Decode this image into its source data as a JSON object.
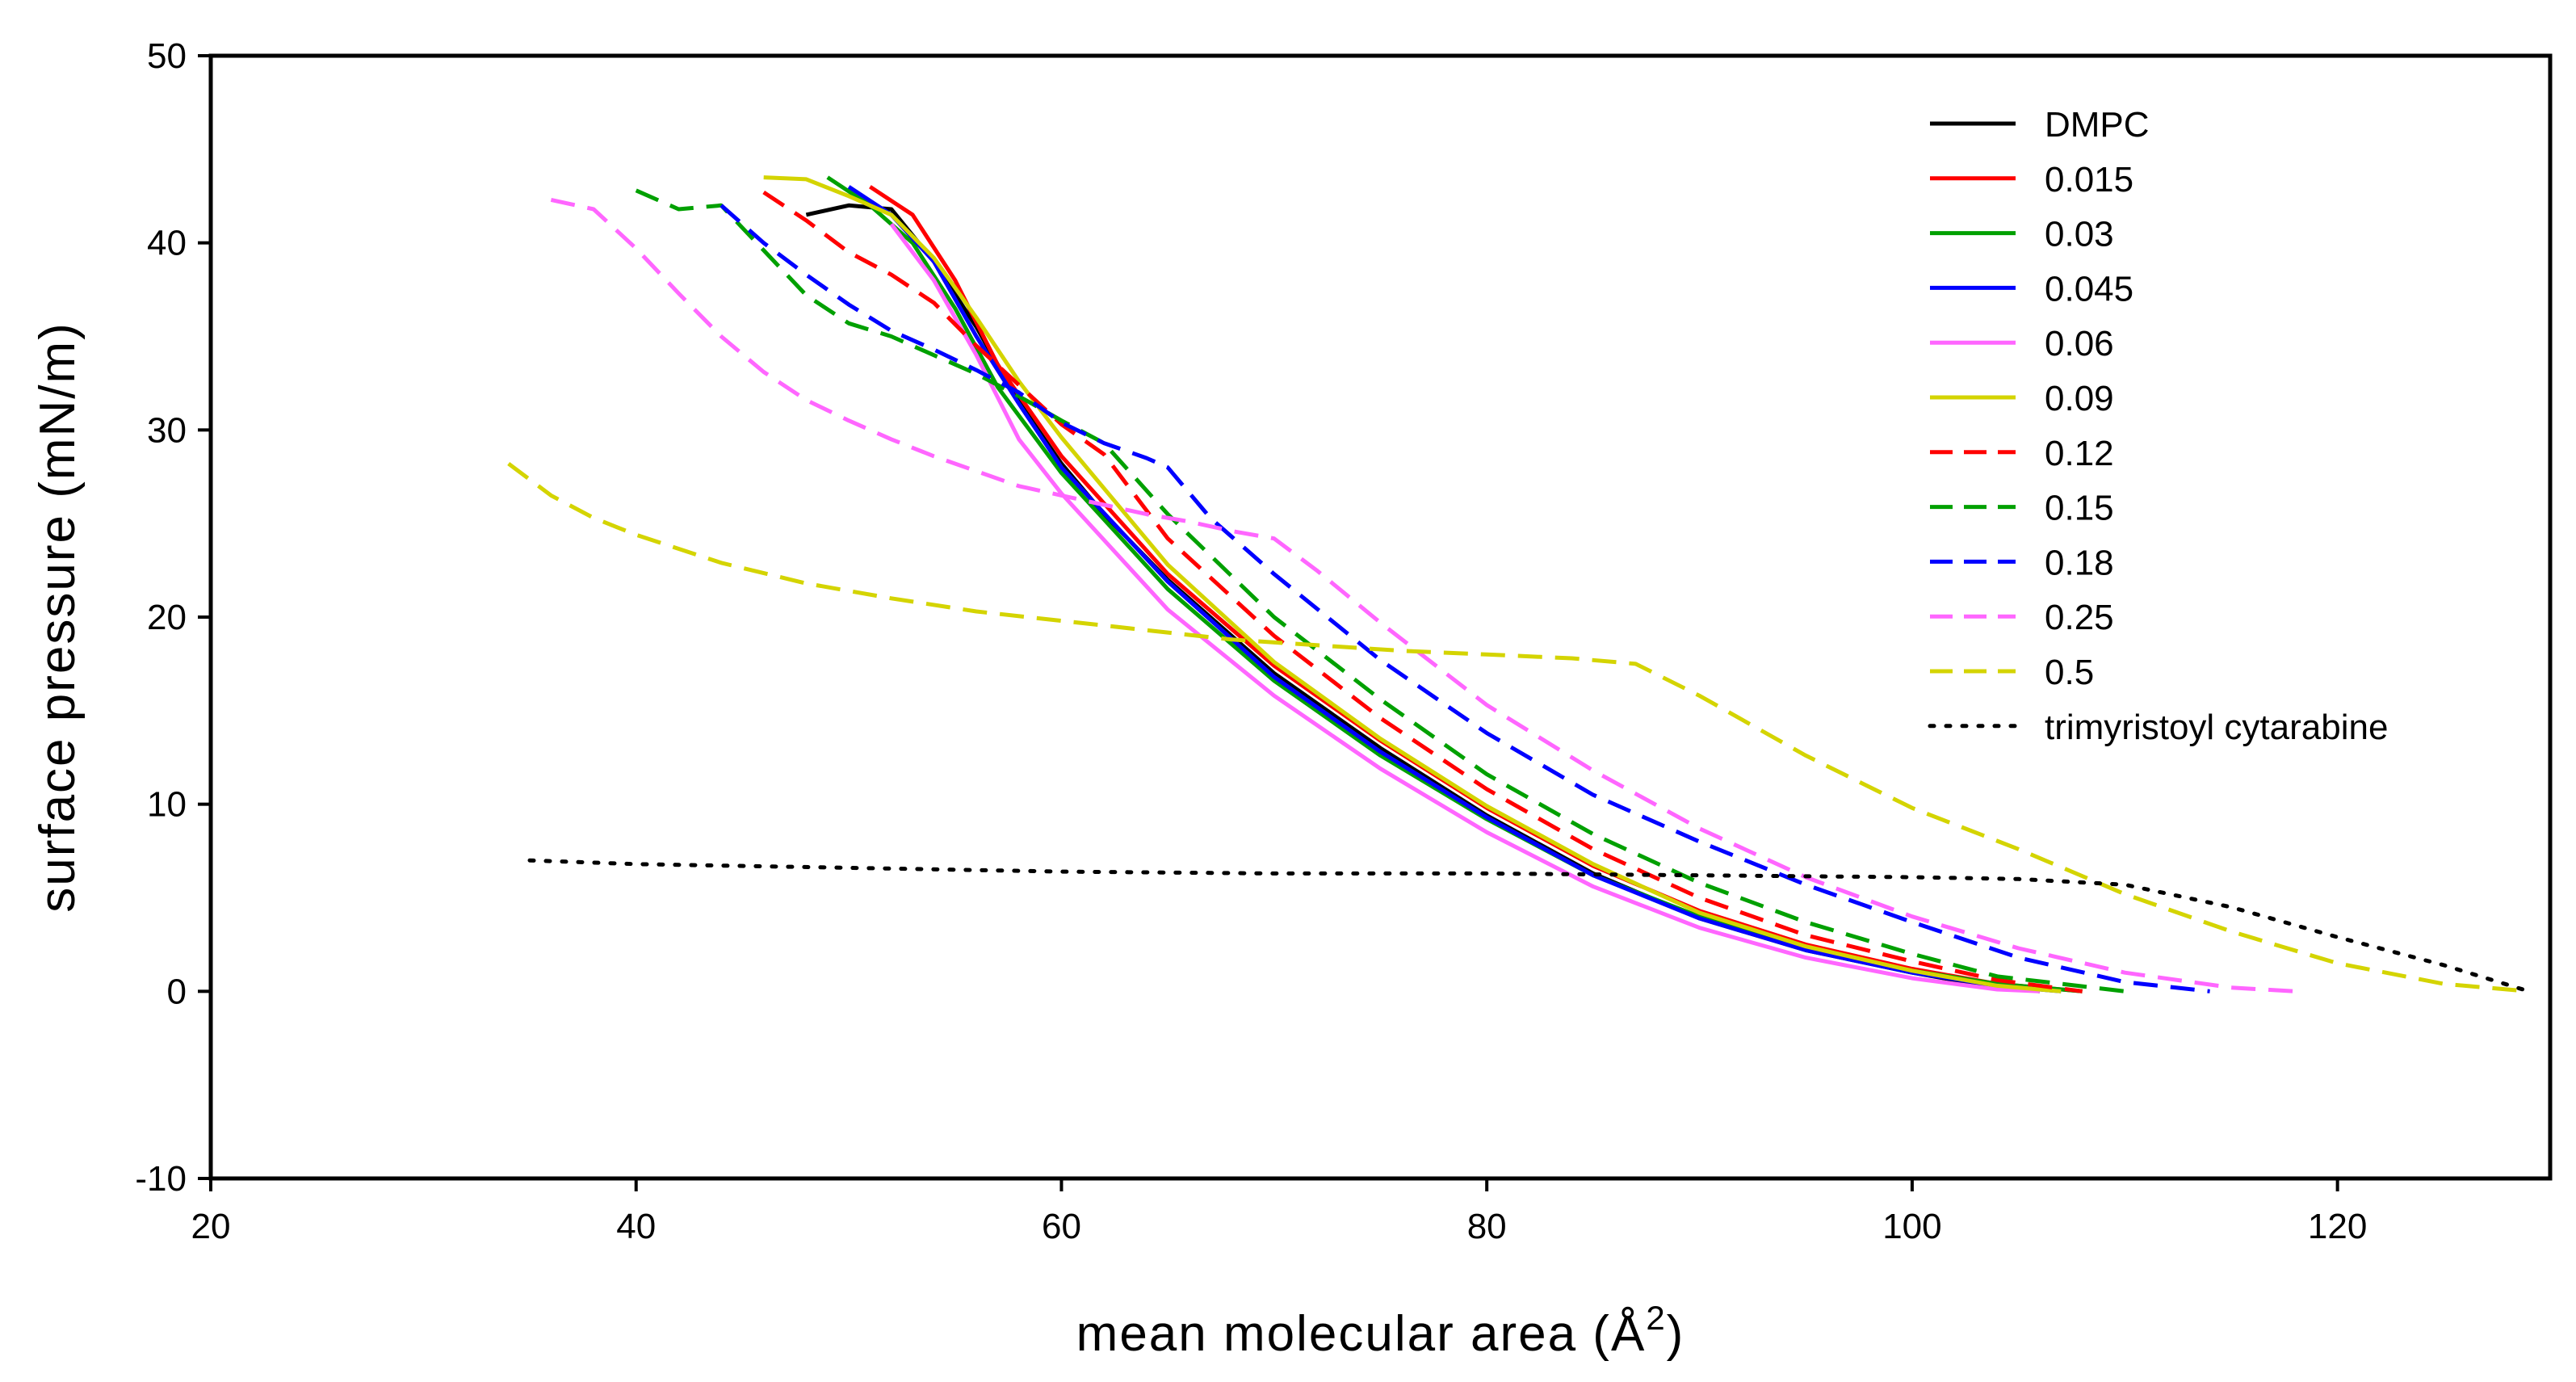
{
  "chart_data": {
    "type": "line",
    "title": "",
    "xlabel": {
      "text": "mean molecular area (",
      "unit": "Å",
      "sup": "2",
      "tail": ")"
    },
    "ylabel": "surface pressure (mN/m)",
    "xlim": [
      20,
      130
    ],
    "ylim": [
      -10,
      50
    ],
    "xticks": [
      20,
      40,
      60,
      80,
      100,
      120
    ],
    "yticks": [
      -10,
      0,
      10,
      20,
      30,
      40,
      50
    ],
    "grid": false,
    "legend_position": "top-right",
    "series": [
      {
        "name": "DMPC",
        "color": "#000000",
        "style": "solid",
        "points": [
          [
            48,
            41.5
          ],
          [
            50,
            42
          ],
          [
            52,
            41.8
          ],
          [
            54,
            39
          ],
          [
            56,
            35.5
          ],
          [
            58,
            31.5
          ],
          [
            60,
            28.2
          ],
          [
            62,
            25.5
          ],
          [
            65,
            22
          ],
          [
            70,
            17
          ],
          [
            75,
            13
          ],
          [
            80,
            9.4
          ],
          [
            85,
            6.3
          ],
          [
            90,
            3.9
          ],
          [
            95,
            2.2
          ],
          [
            100,
            1
          ],
          [
            103,
            0.4
          ],
          [
            106,
            0
          ]
        ]
      },
      {
        "name": "0.015",
        "color": "#ff0000",
        "style": "solid",
        "points": [
          [
            51,
            43
          ],
          [
            53,
            41.5
          ],
          [
            55,
            38
          ],
          [
            57,
            33.5
          ],
          [
            60,
            28.6
          ],
          [
            65,
            22.3
          ],
          [
            70,
            17.4
          ],
          [
            75,
            13.4
          ],
          [
            80,
            9.8
          ],
          [
            85,
            6.7
          ],
          [
            90,
            4.3
          ],
          [
            95,
            2.5
          ],
          [
            100,
            1.2
          ],
          [
            104,
            0.4
          ],
          [
            108,
            0
          ]
        ]
      },
      {
        "name": "0.03",
        "color": "#00a000",
        "style": "solid",
        "points": [
          [
            49,
            43.5
          ],
          [
            51,
            42
          ],
          [
            53,
            40
          ],
          [
            55,
            36.5
          ],
          [
            57,
            32.3
          ],
          [
            60,
            27.7
          ],
          [
            65,
            21.5
          ],
          [
            70,
            16.6
          ],
          [
            75,
            12.6
          ],
          [
            80,
            9.2
          ],
          [
            85,
            6.2
          ],
          [
            90,
            4
          ],
          [
            95,
            2.3
          ],
          [
            100,
            1.1
          ],
          [
            104,
            0.4
          ],
          [
            108,
            0
          ]
        ]
      },
      {
        "name": "0.045",
        "color": "#0000ff",
        "style": "solid",
        "points": [
          [
            50,
            43
          ],
          [
            52,
            41.5
          ],
          [
            54,
            39
          ],
          [
            56,
            35
          ],
          [
            58,
            31.4
          ],
          [
            60,
            28
          ],
          [
            65,
            21.9
          ],
          [
            70,
            16.8
          ],
          [
            75,
            12.8
          ],
          [
            80,
            9.3
          ],
          [
            85,
            6.2
          ],
          [
            90,
            3.9
          ],
          [
            95,
            2.2
          ],
          [
            100,
            1
          ],
          [
            104,
            0.3
          ],
          [
            107,
            0
          ]
        ]
      },
      {
        "name": "0.06",
        "color": "#ff66ff",
        "style": "solid",
        "points": [
          [
            52,
            41
          ],
          [
            54,
            38
          ],
          [
            56,
            34
          ],
          [
            58,
            29.5
          ],
          [
            60,
            26.6
          ],
          [
            65,
            20.4
          ],
          [
            70,
            15.8
          ],
          [
            75,
            11.9
          ],
          [
            80,
            8.5
          ],
          [
            85,
            5.6
          ],
          [
            90,
            3.4
          ],
          [
            95,
            1.8
          ],
          [
            100,
            0.7
          ],
          [
            104,
            0.1
          ],
          [
            106,
            0
          ]
        ]
      },
      {
        "name": "0.09",
        "color": "#d4d400",
        "style": "solid",
        "points": [
          [
            46,
            43.5
          ],
          [
            48,
            43.4
          ],
          [
            50,
            42.5
          ],
          [
            52,
            41.5
          ],
          [
            54,
            39.2
          ],
          [
            56,
            36
          ],
          [
            58,
            32.6
          ],
          [
            60,
            29.6
          ],
          [
            65,
            22.8
          ],
          [
            70,
            17.6
          ],
          [
            75,
            13.5
          ],
          [
            80,
            9.9
          ],
          [
            85,
            6.8
          ],
          [
            90,
            4.2
          ],
          [
            95,
            2.4
          ],
          [
            100,
            1.1
          ],
          [
            104,
            0.3
          ],
          [
            107,
            0
          ]
        ]
      },
      {
        "name": "0.12",
        "color": "#ff0000",
        "style": "dashed",
        "points": [
          [
            46,
            42.7
          ],
          [
            48,
            41.2
          ],
          [
            50,
            39.5
          ],
          [
            52,
            38.3
          ],
          [
            54,
            36.8
          ],
          [
            56,
            34.5
          ],
          [
            58,
            32.4
          ],
          [
            60,
            30.3
          ],
          [
            62,
            28.7
          ],
          [
            65,
            24.2
          ],
          [
            70,
            19
          ],
          [
            75,
            14.6
          ],
          [
            80,
            10.8
          ],
          [
            85,
            7.6
          ],
          [
            90,
            5
          ],
          [
            95,
            3
          ],
          [
            100,
            1.6
          ],
          [
            104,
            0.6
          ],
          [
            108,
            0
          ]
        ]
      },
      {
        "name": "0.15",
        "color": "#00a000",
        "style": "dashed",
        "points": [
          [
            40,
            42.8
          ],
          [
            42,
            41.8
          ],
          [
            44,
            42
          ],
          [
            46,
            39.6
          ],
          [
            48,
            37.2
          ],
          [
            50,
            35.7
          ],
          [
            52,
            35
          ],
          [
            54,
            34
          ],
          [
            56,
            33
          ],
          [
            58,
            31.8
          ],
          [
            60,
            30.5
          ],
          [
            62,
            29.3
          ],
          [
            65,
            25.5
          ],
          [
            70,
            20
          ],
          [
            75,
            15.6
          ],
          [
            80,
            11.6
          ],
          [
            85,
            8.4
          ],
          [
            90,
            5.8
          ],
          [
            95,
            3.7
          ],
          [
            100,
            2
          ],
          [
            104,
            0.8
          ],
          [
            110,
            0
          ]
        ]
      },
      {
        "name": "0.18",
        "color": "#0000ff",
        "style": "dashed",
        "points": [
          [
            44,
            42
          ],
          [
            46,
            40
          ],
          [
            48,
            38.3
          ],
          [
            50,
            36.7
          ],
          [
            52,
            35.3
          ],
          [
            54,
            34.3
          ],
          [
            56,
            33.2
          ],
          [
            58,
            32
          ],
          [
            60,
            30.4
          ],
          [
            62,
            29.3
          ],
          [
            64,
            28.5
          ],
          [
            65,
            28
          ],
          [
            67,
            25.3
          ],
          [
            70,
            22.3
          ],
          [
            75,
            17.7
          ],
          [
            80,
            13.8
          ],
          [
            85,
            10.5
          ],
          [
            90,
            8
          ],
          [
            95,
            5.7
          ],
          [
            100,
            3.7
          ],
          [
            105,
            1.8
          ],
          [
            110,
            0.5
          ],
          [
            114,
            0
          ]
        ]
      },
      {
        "name": "0.25",
        "color": "#ff66ff",
        "style": "dashed",
        "points": [
          [
            36,
            42.3
          ],
          [
            38,
            41.8
          ],
          [
            40,
            39.7
          ],
          [
            42,
            37.3
          ],
          [
            44,
            35
          ],
          [
            46,
            33.1
          ],
          [
            48,
            31.6
          ],
          [
            50,
            30.5
          ],
          [
            52,
            29.5
          ],
          [
            54,
            28.6
          ],
          [
            56,
            27.8
          ],
          [
            58,
            27
          ],
          [
            60,
            26.5
          ],
          [
            62,
            26
          ],
          [
            64,
            25.5
          ],
          [
            66,
            25.1
          ],
          [
            68,
            24.6
          ],
          [
            70,
            24.2
          ],
          [
            72,
            22.5
          ],
          [
            75,
            19.7
          ],
          [
            80,
            15.3
          ],
          [
            85,
            11.8
          ],
          [
            90,
            8.7
          ],
          [
            95,
            6.1
          ],
          [
            100,
            4
          ],
          [
            105,
            2.3
          ],
          [
            110,
            1
          ],
          [
            115,
            0.2
          ],
          [
            118,
            0
          ]
        ]
      },
      {
        "name": "0.5",
        "color": "#d4d400",
        "style": "dashed",
        "points": [
          [
            34,
            28.2
          ],
          [
            36,
            26.5
          ],
          [
            38,
            25.3
          ],
          [
            40,
            24.4
          ],
          [
            44,
            22.9
          ],
          [
            48,
            21.8
          ],
          [
            52,
            21
          ],
          [
            56,
            20.3
          ],
          [
            60,
            19.8
          ],
          [
            64,
            19.3
          ],
          [
            68,
            18.8
          ],
          [
            72,
            18.5
          ],
          [
            76,
            18.2
          ],
          [
            80,
            18
          ],
          [
            84,
            17.8
          ],
          [
            87,
            17.5
          ],
          [
            90,
            15.8
          ],
          [
            95,
            12.6
          ],
          [
            100,
            9.8
          ],
          [
            105,
            7.6
          ],
          [
            110,
            5.2
          ],
          [
            115,
            3.2
          ],
          [
            120,
            1.5
          ],
          [
            125,
            0.4
          ],
          [
            129,
            0
          ]
        ]
      },
      {
        "name": "trimyristoyl cytarabine",
        "color": "#000000",
        "style": "dotted",
        "points": [
          [
            35,
            7
          ],
          [
            40,
            6.8
          ],
          [
            50,
            6.6
          ],
          [
            60,
            6.4
          ],
          [
            70,
            6.3
          ],
          [
            80,
            6.3
          ],
          [
            90,
            6.2
          ],
          [
            100,
            6.1
          ],
          [
            105,
            6
          ],
          [
            110,
            5.7
          ],
          [
            115,
            4.5
          ],
          [
            120,
            2.9
          ],
          [
            125,
            1.4
          ],
          [
            129,
            0
          ]
        ]
      }
    ]
  }
}
